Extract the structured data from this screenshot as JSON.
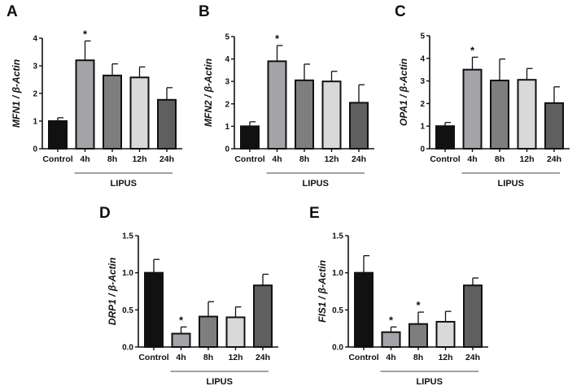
{
  "chart_data": [
    {
      "type": "bar",
      "panel_label": "A",
      "ylabel": "MFN1 / β-Actin",
      "ylim": [
        0,
        4
      ],
      "yticks": [
        "0",
        "1",
        "2",
        "3",
        "4"
      ],
      "categories": [
        "Control",
        "4h",
        "8h",
        "12h",
        "24h"
      ],
      "values": [
        1.0,
        3.2,
        2.65,
        2.58,
        1.77
      ],
      "errors": [
        0.12,
        0.7,
        0.42,
        0.38,
        0.44
      ],
      "significance": [
        "",
        "*",
        "",
        "",
        ""
      ],
      "group_label": "LIPUS"
    },
    {
      "type": "bar",
      "panel_label": "B",
      "ylabel": "MFN2 / β-Actin",
      "ylim": [
        0,
        5
      ],
      "yticks": [
        "0",
        "1",
        "2",
        "3",
        "4",
        "5"
      ],
      "categories": [
        "Control",
        "4h",
        "8h",
        "12h",
        "24h"
      ],
      "values": [
        1.0,
        3.9,
        3.05,
        3.0,
        2.05
      ],
      "errors": [
        0.2,
        0.7,
        0.72,
        0.45,
        0.8
      ],
      "significance": [
        "",
        "*",
        "",
        "",
        ""
      ],
      "group_label": "LIPUS"
    },
    {
      "type": "bar",
      "panel_label": "C",
      "ylabel": "OPA1 / β-Actin",
      "ylim": [
        0,
        5
      ],
      "yticks": [
        "0",
        "1",
        "2",
        "3",
        "4",
        "5"
      ],
      "categories": [
        "Control",
        "4h",
        "8h",
        "12h",
        "24h"
      ],
      "values": [
        1.0,
        3.5,
        3.02,
        3.05,
        2.02
      ],
      "errors": [
        0.16,
        0.55,
        0.95,
        0.5,
        0.72
      ],
      "significance": [
        "",
        "*",
        "",
        "",
        ""
      ],
      "group_label": "LIPUS"
    },
    {
      "type": "bar",
      "panel_label": "D",
      "ylabel": "DRP1 / β-Actin",
      "ylim": [
        0,
        1.5
      ],
      "yticks": [
        "0.0",
        "0.5",
        "1.0",
        "1.5"
      ],
      "categories": [
        "Control",
        "4h",
        "8h",
        "12h",
        "24h"
      ],
      "values": [
        1.0,
        0.18,
        0.41,
        0.4,
        0.83
      ],
      "errors": [
        0.18,
        0.09,
        0.2,
        0.14,
        0.15
      ],
      "significance": [
        "",
        "*",
        "",
        "",
        ""
      ],
      "group_label": "LIPUS"
    },
    {
      "type": "bar",
      "panel_label": "E",
      "ylabel": "FIS1 / β-Actin",
      "ylim": [
        0,
        1.5
      ],
      "yticks": [
        "0.0",
        "0.5",
        "1.0",
        "1.5"
      ],
      "categories": [
        "Control",
        "4h",
        "8h",
        "12h",
        "24h"
      ],
      "values": [
        1.0,
        0.2,
        0.31,
        0.34,
        0.83
      ],
      "errors": [
        0.23,
        0.07,
        0.16,
        0.14,
        0.1
      ],
      "significance": [
        "",
        "*",
        "*",
        "",
        ""
      ],
      "group_label": "LIPUS"
    }
  ],
  "colors": {
    "Control": "#111111",
    "4h": "#a3a3a8",
    "8h": "#7e7e7e",
    "12h": "#d9d9d9",
    "24h": "#5f5f5f"
  }
}
